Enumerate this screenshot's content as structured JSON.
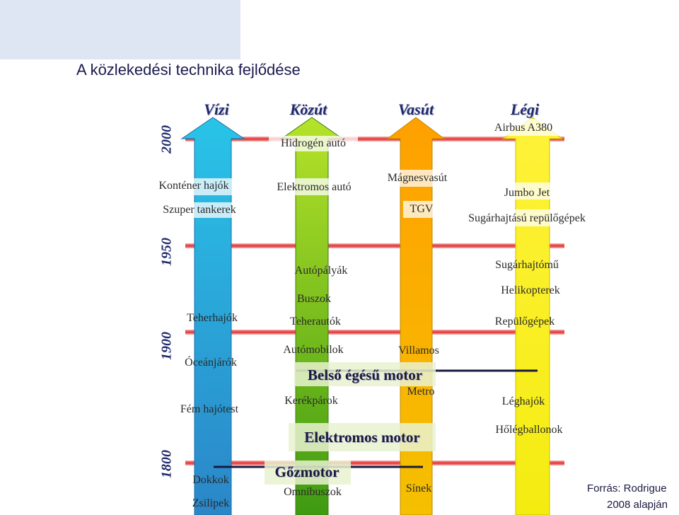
{
  "title": "A közlekedési technika fejlődése",
  "years": [
    "2000",
    "1950",
    "1900",
    "1800"
  ],
  "columns": {
    "water": "Vízi",
    "road": "Közút",
    "rail": "Vasút",
    "air": "Légi"
  },
  "water_items": [
    "Konténer hajók",
    "Szuper tankerek",
    "Teherhajók",
    "Óceánjárók",
    "Fém hajótest",
    "Dokkok",
    "Zsilipek"
  ],
  "road_items": [
    "Hidrogén autó",
    "Elektromos autó",
    "Autópályák",
    "Buszok",
    "Teherautók",
    "Autómobilok",
    "Kerékpárok",
    "Omnibuszok"
  ],
  "rail_items": [
    "Mágnesvasút",
    "TGV",
    "Villamos",
    "Metro",
    "Sínek"
  ],
  "air_items": [
    "Airbus A380",
    "Jumbo Jet",
    "Sugárhajtású repülőgépek",
    "Sugárhajtómű",
    "Helikopterek",
    "Repülőgépek",
    "Léghajók",
    "Hőlégballonok"
  ],
  "engines": {
    "internal": "Belső égésű motor",
    "electric": "Elektromos motor",
    "steam": "Gőzmotor"
  },
  "source": {
    "line1": "Forrás: Rodrigue",
    "line2": "2008 alapján"
  },
  "colors": {
    "water_arrow": "#1d9fdc",
    "road_arrow": "#76c21a",
    "rail_arrow": "#f7b800",
    "air_arrow": "#f2f21e",
    "timeline": "#e63a3a",
    "header_text": "#1f2a6e"
  }
}
